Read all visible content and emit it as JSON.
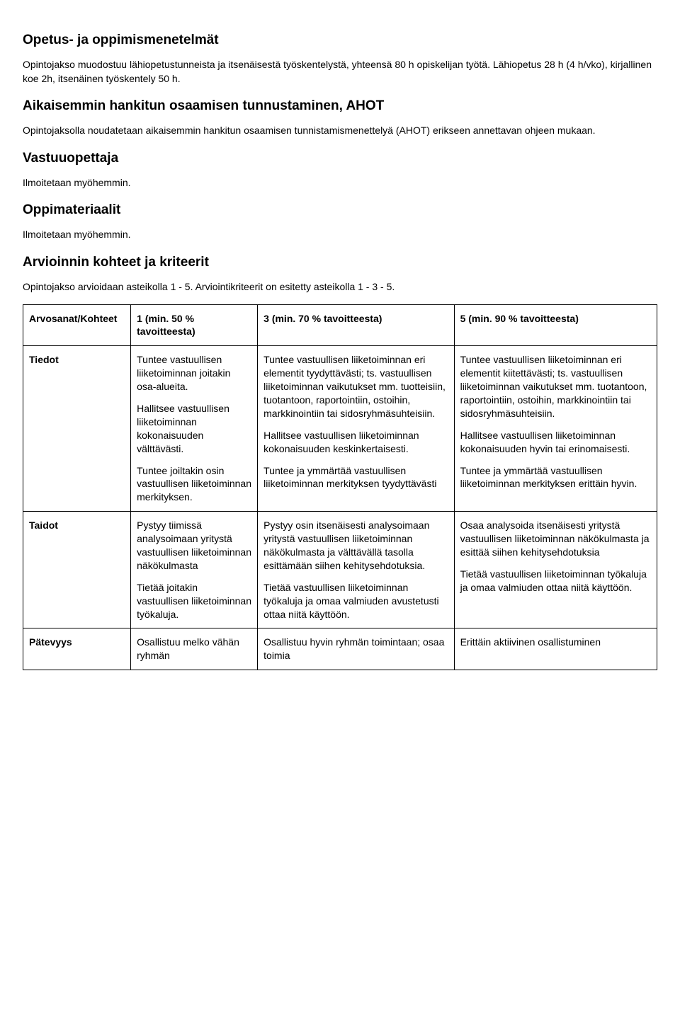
{
  "sections": {
    "s1": {
      "title": "Opetus- ja oppimismenetelmät",
      "p1": "Opintojakso muodostuu lähiopetustunneista ja itsenäisestä työskentelystä, yhteensä 80 h opiskelijan työtä. Lähiopetus 28 h (4 h/vko), kirjallinen koe 2h, itsenäinen työskentely 50 h."
    },
    "s2": {
      "title": "Aikaisemmin hankitun osaamisen tunnustaminen, AHOT",
      "p1": "Opintojaksolla noudatetaan aikaisemmin hankitun osaamisen tunnistamismenettelyä (AHOT) erikseen annettavan ohjeen mukaan."
    },
    "s3": {
      "title": "Vastuuopettaja",
      "p1": "Ilmoitetaan myöhemmin."
    },
    "s4": {
      "title": "Oppimateriaalit",
      "p1": "Ilmoitetaan myöhemmin."
    },
    "s5": {
      "title": "Arvioinnin kohteet ja kriteerit",
      "p1": "Opintojakso arvioidaan asteikolla 1 - 5. Arviointikriteerit on esitetty asteikolla 1 - 3 - 5."
    }
  },
  "table": {
    "header": {
      "c0": "Arvosanat/Kohteet",
      "c1": "1 (min. 50 % tavoitteesta)",
      "c2": "3 (min. 70 % tavoitteesta)",
      "c3": "5 (min. 90 % tavoitteesta)"
    },
    "rows": {
      "tiedot": {
        "label": "Tiedot",
        "c1": {
          "p1": "Tuntee vastuullisen liiketoiminnan joitakin osa-alueita.",
          "p2": "Hallitsee vastuullisen liiketoiminnan kokonaisuuden välttävästi.",
          "p3": "Tuntee joiltakin osin vastuullisen liiketoiminnan merkityksen."
        },
        "c2": {
          "p1": "Tuntee vastuullisen liiketoiminnan eri elementit tyydyttävästi; ts. vastuullisen liiketoiminnan vaikutukset mm. tuotteisiin, tuotantoon, raportointiin, ostoihin, markkinointiin tai sidosryhmäsuhteisiin.",
          "p2": "Hallitsee vastuullisen liiketoiminnan kokonaisuuden keskinkertaisesti.",
          "p3": "Tuntee ja ymmärtää vastuullisen liiketoiminnan merkityksen tyydyttävästi"
        },
        "c3": {
          "p1": "Tuntee vastuullisen liiketoiminnan eri elementit kiitettävästi; ts. vastuullisen liiketoiminnan vaikutukset mm. tuotantoon, raportointiin, ostoihin, markkinointiin tai sidosryhmäsuhteisiin.",
          "p2": "Hallitsee vastuullisen liiketoiminnan kokonaisuuden hyvin tai erinomaisesti.",
          "p3": "Tuntee ja ymmärtää vastuullisen liiketoiminnan merkityksen erittäin hyvin."
        }
      },
      "taidot": {
        "label": "Taidot",
        "c1": {
          "p1": "Pystyy tiimissä analysoimaan yritystä vastuullisen liiketoiminnan näkökulmasta",
          "p2": "Tietää joitakin vastuullisen liiketoiminnan työkaluja."
        },
        "c2": {
          "p1": "Pystyy osin itsenäisesti analysoimaan yritystä vastuullisen liiketoiminnan näkökulmasta ja välttävällä tasolla esittämään siihen kehitysehdotuksia.",
          "p2": "Tietää vastuullisen liiketoiminnan työkaluja ja omaa valmiuden avustetusti ottaa niitä käyttöön."
        },
        "c3": {
          "p1": "Osaa analysoida itsenäisesti yritystä vastuullisen liiketoiminnan näkökulmasta ja esittää siihen kehitysehdotuksia",
          "p2": "Tietää vastuullisen liiketoiminnan työkaluja ja omaa valmiuden ottaa niitä käyttöön."
        }
      },
      "patevyys": {
        "label": "Pätevyys",
        "c1": {
          "p1": "Osallistuu melko vähän ryhmän"
        },
        "c2": {
          "p1": "Osallistuu hyvin ryhmän toimintaan; osaa toimia"
        },
        "c3": {
          "p1": "Erittäin aktiivinen osallistuminen"
        }
      }
    }
  }
}
